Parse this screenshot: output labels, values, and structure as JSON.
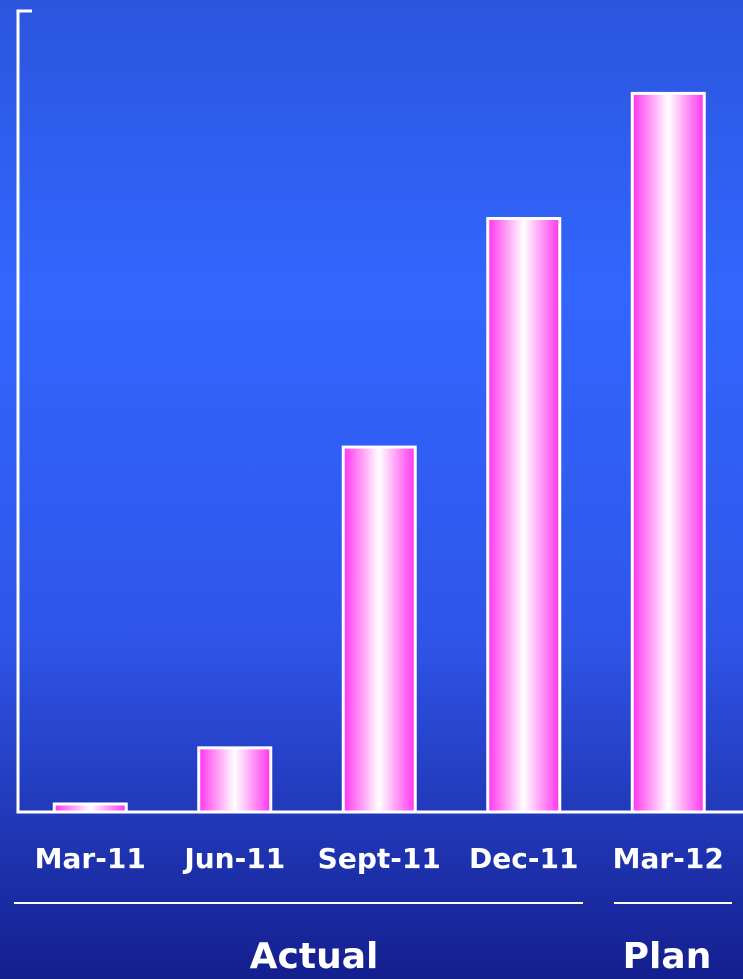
{
  "chart_data": {
    "type": "bar",
    "categories": [
      "Mar-11",
      "Jun-11",
      "Sept-11",
      "Dec-11",
      "Mar-12"
    ],
    "values": [
      1,
      8,
      45.5,
      74,
      89.6
    ],
    "color": "#ff33ee",
    "ylim": [
      0,
      100
    ],
    "groups": [
      "Actual",
      "Plan"
    ]
  }
}
